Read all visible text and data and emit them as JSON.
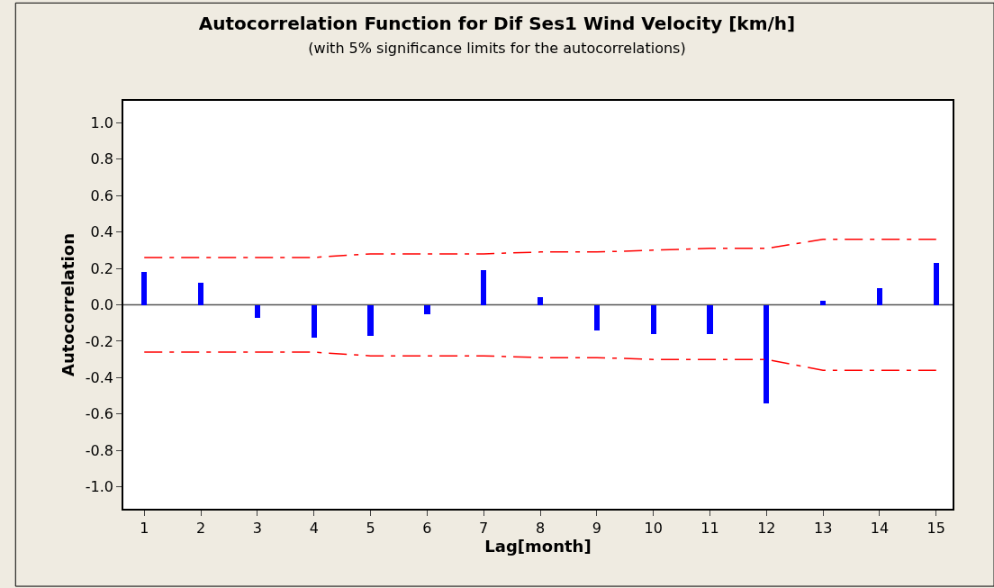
{
  "chart_data": {
    "type": "bar",
    "title": "Autocorrelation Function for Dif Ses1 Wind Velocity [km/h]",
    "subtitle": "(with 5% significance limits for the autocorrelations)",
    "xlabel": "Lag[month]",
    "ylabel": "Autocorrelation",
    "x": [
      1,
      2,
      3,
      4,
      5,
      6,
      7,
      8,
      9,
      10,
      11,
      12,
      13,
      14,
      15
    ],
    "series": [
      {
        "color": "#0000ff",
        "values": [
          0.18,
          0.12,
          -0.07,
          -0.18,
          -0.17,
          -0.05,
          0.19,
          0.04,
          -0.14,
          -0.16,
          -0.16,
          -0.54,
          0.02,
          0.09,
          0.23
        ]
      },
      {
        "type": "line",
        "color": "#ff0000",
        "line_style": "dashed",
        "values": [
          0.26,
          0.26,
          0.26,
          0.26,
          0.28,
          0.28,
          0.28,
          0.29,
          0.29,
          0.3,
          0.31,
          0.31,
          0.36,
          0.36,
          0.36
        ]
      },
      {
        "type": "line",
        "color": "#ff0000",
        "line_style": "dashed",
        "values": [
          -0.26,
          -0.26,
          -0.26,
          -0.26,
          -0.28,
          -0.28,
          -0.28,
          -0.29,
          -0.29,
          -0.3,
          -0.3,
          -0.3,
          -0.36,
          -0.36,
          -0.36
        ]
      }
    ],
    "xlim": [
      0.63,
      15.29
    ],
    "xticks": [
      1,
      2,
      3,
      4,
      5,
      6,
      7,
      8,
      9,
      10,
      11,
      12,
      13,
      14,
      15
    ],
    "ylim": [
      -1.12,
      1.12
    ],
    "yticks": [
      {
        "value": -1.0,
        "label": "-1.0"
      },
      {
        "value": -0.8,
        "label": "-0.8"
      },
      {
        "value": -0.6,
        "label": "-0.6"
      },
      {
        "value": -0.4,
        "label": "-0.4"
      },
      {
        "value": -0.2,
        "label": "-0.2"
      },
      {
        "value": 0.0,
        "label": "0.0"
      },
      {
        "value": 0.2,
        "label": "0.2"
      },
      {
        "value": 0.4,
        "label": "0.4"
      },
      {
        "value": 0.6,
        "label": "0.6"
      },
      {
        "value": 0.8,
        "label": "0.8"
      },
      {
        "value": 1.0,
        "label": "1.0"
      }
    ],
    "ref_lines": [
      {
        "axis": "y",
        "value": 0,
        "color": "#555555"
      }
    ],
    "grid": false
  }
}
